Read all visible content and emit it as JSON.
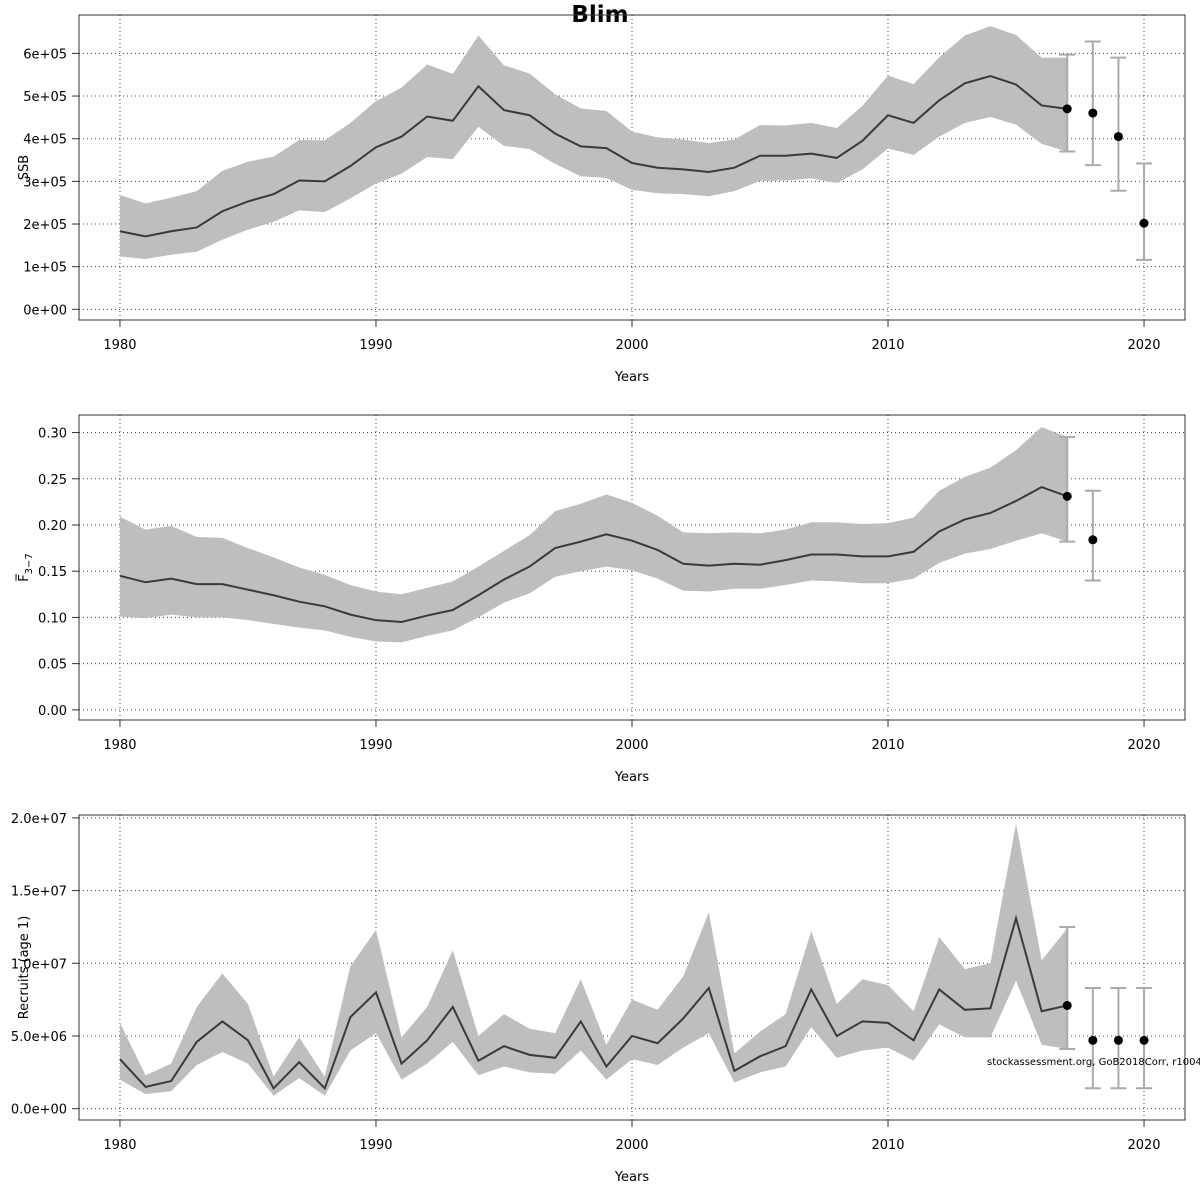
{
  "title": "Blim",
  "watermark": "stockassessment.org, GoB2018Corr, r10042",
  "colors": {
    "band": "#bebebe",
    "line": "#3a3a3a",
    "point": "#000000",
    "errorbar": "#aaaaaa"
  },
  "chart_data": [
    {
      "type": "line",
      "id": "ssb",
      "xlabel": "Years",
      "ylabel": "SSB",
      "xlim": [
        1978.4,
        2021.6
      ],
      "ylim": [
        -25000,
        690000
      ],
      "xticks": [
        1980,
        1990,
        2000,
        2010,
        2020
      ],
      "yticks": [
        0,
        100000,
        200000,
        300000,
        400000,
        500000,
        600000
      ],
      "ytick_labels": [
        "0e+00",
        "1e+05",
        "2e+05",
        "3e+05",
        "4e+05",
        "5e+05",
        "6e+05"
      ],
      "grid": true,
      "x": [
        1980,
        1981,
        1982,
        1983,
        1984,
        1985,
        1986,
        1987,
        1988,
        1989,
        1990,
        1991,
        1992,
        1993,
        1994,
        1995,
        1996,
        1997,
        1998,
        1999,
        2000,
        2001,
        2002,
        2003,
        2004,
        2005,
        2006,
        2007,
        2008,
        2009,
        2010,
        2011,
        2012,
        2013,
        2014,
        2015,
        2016,
        2017
      ],
      "estimate": [
        183000,
        171000,
        183000,
        192000,
        230000,
        253000,
        270000,
        302000,
        300000,
        336000,
        380000,
        405000,
        452000,
        442000,
        523000,
        467000,
        455000,
        412000,
        382000,
        378000,
        343000,
        332000,
        328000,
        322000,
        332000,
        360000,
        360000,
        365000,
        355000,
        395000,
        455000,
        437000,
        490000,
        530000,
        547000,
        527000,
        478000,
        470000
      ],
      "lower": [
        124000,
        118000,
        128000,
        135000,
        163000,
        187000,
        205000,
        232000,
        228000,
        260000,
        295000,
        318000,
        357000,
        352000,
        428000,
        383000,
        376000,
        341000,
        312000,
        308000,
        280000,
        272000,
        270000,
        265000,
        277000,
        301000,
        302000,
        307000,
        296000,
        328000,
        377000,
        362000,
        405000,
        437000,
        451000,
        433000,
        388000,
        370000
      ],
      "upper": [
        268000,
        248000,
        262000,
        277000,
        325000,
        346000,
        358000,
        397000,
        396000,
        437000,
        488000,
        520000,
        574000,
        552000,
        642000,
        572000,
        553000,
        504000,
        471000,
        465000,
        417000,
        403000,
        398000,
        390000,
        398000,
        432000,
        431000,
        437000,
        425000,
        477000,
        548000,
        528000,
        591000,
        642000,
        664000,
        643000,
        590000,
        590000
      ],
      "projections": [
        {
          "x": 2017,
          "value": 470000,
          "lower": 370000,
          "upper": 597000
        },
        {
          "x": 2018,
          "value": 460000,
          "lower": 338000,
          "upper": 628000
        },
        {
          "x": 2019,
          "value": 405000,
          "lower": 278000,
          "upper": 590000
        },
        {
          "x": 2020,
          "value": 202000,
          "lower": 116000,
          "upper": 342000
        }
      ]
    },
    {
      "type": "line",
      "id": "fbar",
      "xlabel": "Years",
      "ylabel": "F̅",
      "ylabel_sub": "3−7",
      "xlim": [
        1978.4,
        2021.6
      ],
      "ylim": [
        -0.011,
        0.319
      ],
      "xticks": [
        1980,
        1990,
        2000,
        2010,
        2020
      ],
      "yticks": [
        0,
        0.05,
        0.1,
        0.15,
        0.2,
        0.25,
        0.3
      ],
      "ytick_labels": [
        "0.00",
        "0.05",
        "0.10",
        "0.15",
        "0.20",
        "0.25",
        "0.30"
      ],
      "grid": true,
      "x": [
        1980,
        1981,
        1982,
        1983,
        1984,
        1985,
        1986,
        1987,
        1988,
        1989,
        1990,
        1991,
        1992,
        1993,
        1994,
        1995,
        1996,
        1997,
        1998,
        1999,
        2000,
        2001,
        2002,
        2003,
        2004,
        2005,
        2006,
        2007,
        2008,
        2009,
        2010,
        2011,
        2012,
        2013,
        2014,
        2015,
        2016,
        2017
      ],
      "estimate": [
        0.145,
        0.138,
        0.142,
        0.136,
        0.136,
        0.13,
        0.124,
        0.117,
        0.112,
        0.103,
        0.097,
        0.095,
        0.102,
        0.108,
        0.124,
        0.141,
        0.155,
        0.175,
        0.182,
        0.19,
        0.183,
        0.173,
        0.158,
        0.156,
        0.158,
        0.157,
        0.162,
        0.168,
        0.168,
        0.166,
        0.166,
        0.171,
        0.193,
        0.206,
        0.213,
        0.226,
        0.241,
        0.231
      ],
      "lower": [
        0.101,
        0.099,
        0.103,
        0.1,
        0.1,
        0.097,
        0.093,
        0.089,
        0.086,
        0.079,
        0.074,
        0.073,
        0.08,
        0.086,
        0.1,
        0.116,
        0.126,
        0.144,
        0.15,
        0.155,
        0.151,
        0.142,
        0.129,
        0.128,
        0.131,
        0.131,
        0.135,
        0.14,
        0.139,
        0.137,
        0.137,
        0.142,
        0.159,
        0.169,
        0.174,
        0.183,
        0.191,
        0.182
      ],
      "upper": [
        0.209,
        0.195,
        0.199,
        0.187,
        0.186,
        0.175,
        0.165,
        0.154,
        0.146,
        0.135,
        0.128,
        0.125,
        0.132,
        0.139,
        0.155,
        0.172,
        0.189,
        0.215,
        0.223,
        0.233,
        0.224,
        0.21,
        0.192,
        0.191,
        0.192,
        0.191,
        0.195,
        0.203,
        0.203,
        0.201,
        0.202,
        0.208,
        0.237,
        0.252,
        0.262,
        0.281,
        0.306,
        0.295
      ],
      "projections": [
        {
          "x": 2017,
          "value": 0.231,
          "lower": 0.182,
          "upper": 0.295
        },
        {
          "x": 2018,
          "value": 0.184,
          "lower": 0.14,
          "upper": 0.237
        }
      ]
    },
    {
      "type": "line",
      "id": "recruits",
      "xlabel": "Years",
      "ylabel": "Recruits (age 1)",
      "xlim": [
        1978.4,
        2021.6
      ],
      "ylim": [
        -780000,
        20200000
      ],
      "xticks": [
        1980,
        1990,
        2000,
        2010,
        2020
      ],
      "yticks": [
        0,
        5000000,
        10000000,
        15000000,
        20000000
      ],
      "ytick_labels": [
        "0.0e+00",
        "5.0e+06",
        "1.0e+07",
        "1.5e+07",
        "2.0e+07"
      ],
      "grid": true,
      "x": [
        1980,
        1981,
        1982,
        1983,
        1984,
        1985,
        1986,
        1987,
        1988,
        1989,
        1990,
        1991,
        1992,
        1993,
        1994,
        1995,
        1996,
        1997,
        1998,
        1999,
        2000,
        2001,
        2002,
        2003,
        2004,
        2005,
        2006,
        2007,
        2008,
        2009,
        2010,
        2011,
        2012,
        2013,
        2014,
        2015,
        2016,
        2017
      ],
      "estimate": [
        3400000,
        1500000,
        1900000,
        4600000,
        6000000,
        4700000,
        1400000,
        3200000,
        1400000,
        6300000,
        8000000,
        3100000,
        4700000,
        7000000,
        3300000,
        4300000,
        3700000,
        3500000,
        6000000,
        2900000,
        5000000,
        4500000,
        6200000,
        8300000,
        2600000,
        3600000,
        4300000,
        8200000,
        5000000,
        6000000,
        5900000,
        4700000,
        8200000,
        6800000,
        6900000,
        13100000,
        6700000,
        7100000
      ],
      "lower": [
        2000000,
        1000000,
        1200000,
        3000000,
        3900000,
        3100000,
        900000,
        2100000,
        900000,
        4000000,
        5200000,
        2000000,
        3100000,
        4600000,
        2300000,
        2900000,
        2500000,
        2400000,
        4000000,
        2000000,
        3400000,
        3000000,
        4200000,
        5200000,
        1800000,
        2500000,
        2900000,
        5600000,
        3500000,
        4000000,
        4200000,
        3300000,
        5800000,
        4900000,
        4900000,
        8800000,
        4400000,
        4100000
      ],
      "upper": [
        5900000,
        2300000,
        3100000,
        7000000,
        9300000,
        7200000,
        2200000,
        4900000,
        2200000,
        9800000,
        12300000,
        4900000,
        7000000,
        10900000,
        5000000,
        6500000,
        5500000,
        5200000,
        8900000,
        4400000,
        7500000,
        6800000,
        9100000,
        13500000,
        3800000,
        5300000,
        6500000,
        12200000,
        7200000,
        8900000,
        8500000,
        6700000,
        11800000,
        9600000,
        10000000,
        19600000,
        10200000,
        12400000
      ],
      "projections": [
        {
          "x": 2017,
          "value": 7100000,
          "lower": 4100000,
          "upper": 12500000
        },
        {
          "x": 2018,
          "value": 4700000,
          "lower": 1400000,
          "upper": 8300000
        },
        {
          "x": 2019,
          "value": 4700000,
          "lower": 1400000,
          "upper": 8300000
        },
        {
          "x": 2020,
          "value": 4700000,
          "lower": 1400000,
          "upper": 8300000
        }
      ]
    }
  ]
}
